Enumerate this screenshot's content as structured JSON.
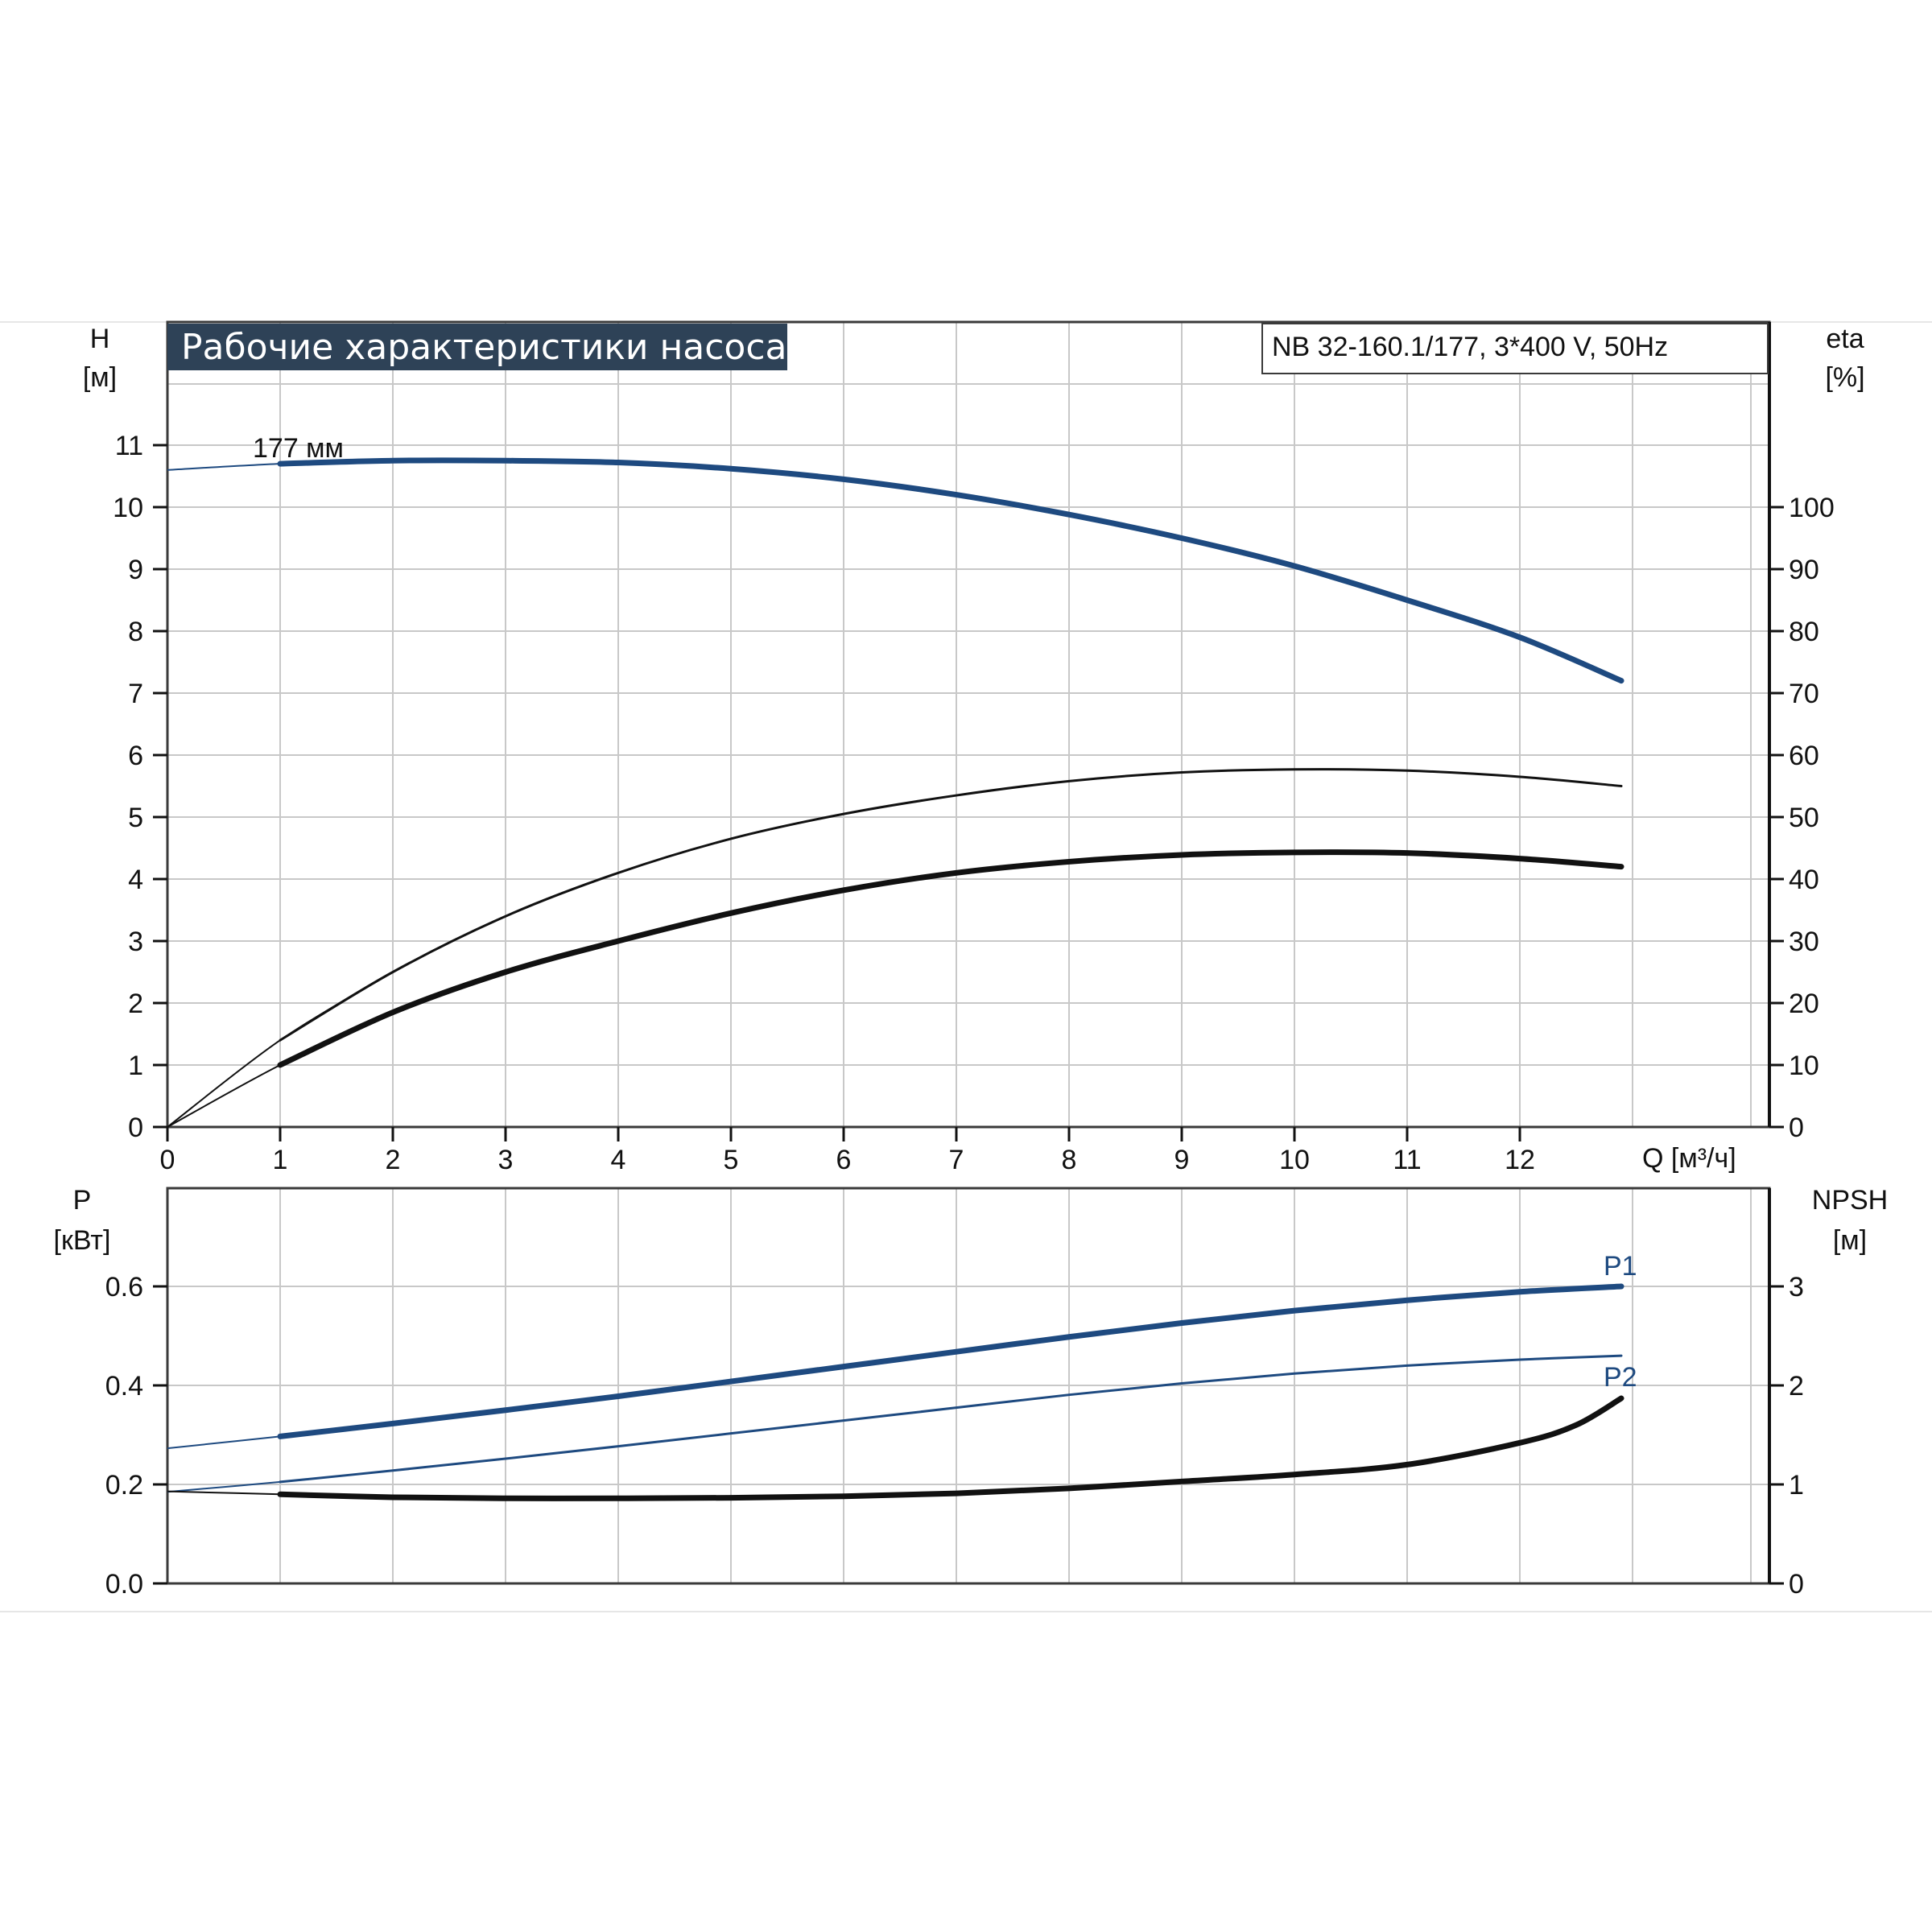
{
  "chart_data": [
    {
      "type": "line",
      "title": "Рабочие характеристики насоса",
      "subtitle": "NB 32-160.1/177, 3*400 V, 50Hz",
      "xlabel": "Q [м³/ч]",
      "x_ticks": [
        "0",
        "1",
        "2",
        "3",
        "4",
        "5",
        "6",
        "7",
        "8",
        "9",
        "10",
        "11",
        "12"
      ],
      "xlim": [
        0,
        14
      ],
      "ylabel_left": [
        "H",
        "[м]"
      ],
      "ylim_left": [
        0,
        12
      ],
      "y_ticks_left": [
        "0",
        "1",
        "2",
        "3",
        "4",
        "5",
        "6",
        "7",
        "8",
        "9",
        "10",
        "11"
      ],
      "ylabel_right": [
        "eta",
        "[%]"
      ],
      "ylim_right": [
        0,
        120
      ],
      "y_ticks_right": [
        "0",
        "10",
        "20",
        "30",
        "40",
        "50",
        "60",
        "70",
        "80",
        "90",
        "100"
      ],
      "grid": true,
      "annotations": [
        {
          "text": "177 мм",
          "x": 1.25,
          "y": 11.0
        }
      ],
      "series": [
        {
          "name": "177 мм",
          "axis": "left",
          "color": "#1e4a80",
          "x": [
            0,
            1,
            2,
            3,
            4,
            5,
            6,
            7,
            8,
            9,
            10,
            11,
            12,
            12.9
          ],
          "y": [
            10.6,
            10.7,
            10.75,
            10.75,
            10.72,
            10.62,
            10.45,
            10.2,
            9.88,
            9.5,
            9.05,
            8.5,
            7.9,
            7.2
          ]
        },
        {
          "axis": "right",
          "color": "#111111",
          "x": [
            0,
            1,
            2,
            3,
            4,
            5,
            6,
            7,
            8,
            9,
            10,
            11,
            12,
            12.9
          ],
          "y": [
            0,
            14,
            25,
            34,
            41,
            46.5,
            50.5,
            53.5,
            55.8,
            57.2,
            57.7,
            57.5,
            56.5,
            55
          ]
        },
        {
          "axis": "right",
          "color": "#111111",
          "x": [
            0,
            1,
            2,
            3,
            4,
            5,
            6,
            7,
            8,
            9,
            10,
            11,
            12,
            12.9
          ],
          "y": [
            0,
            10,
            18.5,
            25,
            30,
            34.5,
            38.2,
            41,
            42.8,
            43.9,
            44.3,
            44.2,
            43.3,
            42
          ]
        }
      ]
    },
    {
      "type": "line",
      "xlim": [
        0,
        14
      ],
      "ylabel_left": [
        "P",
        "[кВт]"
      ],
      "ylim_left": [
        0,
        0.8
      ],
      "y_ticks_left": [
        "0.0",
        "0.2",
        "0.4",
        "0.6"
      ],
      "ylabel_right": [
        "NPSH",
        "[м]"
      ],
      "ylim_right": [
        0,
        4
      ],
      "y_ticks_right": [
        "0",
        "1",
        "2",
        "3"
      ],
      "grid": true,
      "series": [
        {
          "name": "P1",
          "axis": "left",
          "color": "#1e4a80",
          "x": [
            0,
            1,
            2,
            3,
            4,
            5,
            6,
            7,
            8,
            9,
            10,
            11,
            12,
            12.9
          ],
          "y": [
            0.273,
            0.297,
            0.323,
            0.35,
            0.378,
            0.408,
            0.438,
            0.468,
            0.498,
            0.526,
            0.551,
            0.572,
            0.589,
            0.6
          ]
        },
        {
          "name": "P2",
          "axis": "left",
          "color": "#1e4a80",
          "x": [
            0,
            1,
            2,
            3,
            4,
            5,
            6,
            7,
            8,
            9,
            10,
            11,
            12,
            12.9
          ],
          "y": [
            0.185,
            0.205,
            0.228,
            0.252,
            0.277,
            0.303,
            0.329,
            0.355,
            0.381,
            0.404,
            0.424,
            0.44,
            0.452,
            0.46
          ]
        },
        {
          "name": "NPSH",
          "axis": "right",
          "color": "#111111",
          "x": [
            0,
            1,
            2,
            3,
            4,
            5,
            6,
            7,
            8,
            9,
            10,
            11,
            12,
            12.5,
            12.9
          ],
          "y": [
            0.93,
            0.9,
            0.87,
            0.86,
            0.86,
            0.865,
            0.88,
            0.91,
            0.96,
            1.03,
            1.1,
            1.2,
            1.42,
            1.6,
            1.87
          ]
        }
      ]
    }
  ]
}
